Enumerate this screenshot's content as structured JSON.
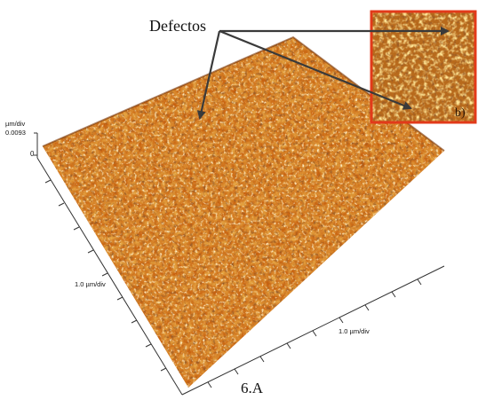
{
  "figure": {
    "callout_label": "Defectos",
    "panel_label": "6.A",
    "z_axis_unit": "µm/div",
    "z_axis_max": "0.0093",
    "z_axis_zero": "0",
    "x_axis_scale": "1.0 µm/div",
    "y_axis_scale": "1.0 µm/div",
    "inset_partial_label": "b)"
  },
  "colors": {
    "surface_base": "#c8610f",
    "surface_highlight": "#ffd27a",
    "surface_shadow": "#6a2a05",
    "inset_border": "#e23a1a",
    "arrow": "#3a3a3a"
  }
}
